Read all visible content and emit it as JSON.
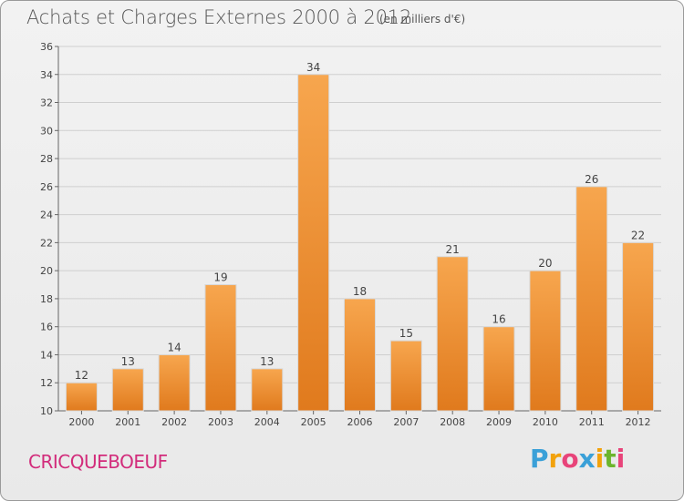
{
  "header": {
    "title": "Achats et Charges Externes 2000 à 2012",
    "subtitle": "(en milliers d'€)"
  },
  "footer": {
    "town": "CRICQUEBOEUF",
    "logo_letters": [
      "P",
      "r",
      "o",
      "x",
      "i",
      "t",
      "i"
    ],
    "logo_colors": [
      "#3aa0d8",
      "#f2a20c",
      "#e8447a",
      "#3aa0d8",
      "#f2a20c",
      "#6cb52d",
      "#e8447a"
    ]
  },
  "colors": {
    "bar_top": "#f7a64e",
    "bar_bottom": "#e07a1d",
    "axis": "#666666",
    "grid": "#cfcfcf"
  },
  "chart_data": {
    "type": "bar",
    "title": "Achats et Charges Externes 2000 à 2012",
    "subtitle": "(en milliers d'€)",
    "xlabel": "",
    "ylabel": "",
    "categories": [
      "2000",
      "2001",
      "2002",
      "2003",
      "2004",
      "2005",
      "2006",
      "2007",
      "2008",
      "2009",
      "2010",
      "2011",
      "2012"
    ],
    "values": [
      12,
      13,
      14,
      19,
      13,
      34,
      18,
      15,
      21,
      16,
      20,
      26,
      22
    ],
    "ylim": [
      10,
      36
    ],
    "yticks": [
      10,
      12,
      14,
      16,
      18,
      20,
      22,
      24,
      26,
      28,
      30,
      32,
      34,
      36
    ],
    "grid": true,
    "data_labels": true
  }
}
